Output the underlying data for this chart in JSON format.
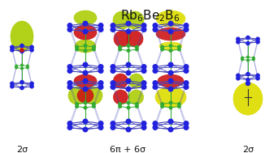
{
  "title": "Rb$_6$Be$_2$B$_6$",
  "bg_color": "#ffffff",
  "label_left": "2σ",
  "label_center": "6π + 6σ",
  "label_right": "2σ",
  "label_fontsize": 8,
  "label_color": "#111111",
  "node_color": "#2222dd",
  "bond_color_blue": "#4444bb",
  "bond_color_green": "#33aa33",
  "lobe_yg": "#aacc00",
  "lobe_red": "#cc1111",
  "lobe_yellow": "#dddd00",
  "figure_width": 3.42,
  "figure_height": 1.89,
  "dpi": 100
}
